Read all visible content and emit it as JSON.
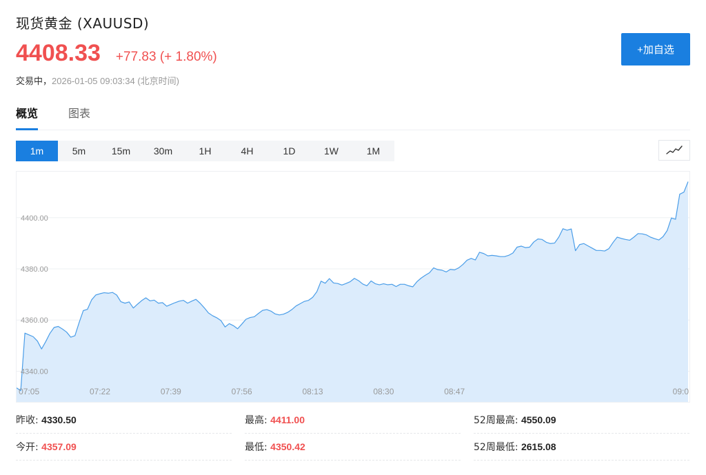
{
  "header": {
    "title": "现货黄金 (XAUUSD)",
    "price": "4408.33",
    "change": "+77.83 (+ 1.80%)",
    "status_label": "交易中，",
    "timestamp": "2026-01-05 09:03:34 (北京时间)",
    "add_button": "+加自选",
    "accent_color": "#1a7fe0",
    "up_color": "#f05050"
  },
  "tabs": [
    {
      "label": "概览",
      "active": true
    },
    {
      "label": "图表",
      "active": false
    }
  ],
  "periods": [
    {
      "label": "1m",
      "active": true
    },
    {
      "label": "5m"
    },
    {
      "label": "15m"
    },
    {
      "label": "30m"
    },
    {
      "label": "1H"
    },
    {
      "label": "4H"
    },
    {
      "label": "1D"
    },
    {
      "label": "1W"
    },
    {
      "label": "1M"
    }
  ],
  "chart_type_icon": "line-chart-icon",
  "chart_data": {
    "type": "area",
    "series": [
      {
        "values": [
          4333.5,
          4332.4,
          4354.9,
          4354.2,
          4353.5,
          4351.8,
          4348.7,
          4351.6,
          4354.8,
          4357.1,
          4357.5,
          4356.5,
          4355.3,
          4353.3,
          4353.9,
          4359,
          4363.7,
          4364.2,
          4367.9,
          4369.8,
          4370.3,
          4370.7,
          4370.5,
          4370.8,
          4369.8,
          4367.2,
          4366.6,
          4367.1,
          4364.7,
          4366.2,
          4367.6,
          4368.7,
          4367.5,
          4367.8,
          4366.6,
          4366.8,
          4365.4,
          4366.1,
          4366.8,
          4367.4,
          4367.7,
          4366.6,
          4367.4,
          4368.1,
          4366.6,
          4364.8,
          4362.8,
          4361.7,
          4360.9,
          4359.8,
          4357.3,
          4358.6,
          4357.8,
          4356.6,
          4358.4,
          4360.3,
          4361,
          4361.3,
          4362.6,
          4363.8,
          4364.1,
          4363.5,
          4362.4,
          4362,
          4362.3,
          4363,
          4364.1,
          4365.5,
          4366.4,
          4367.3,
          4367.7,
          4368.9,
          4371.1,
          4375.2,
          4374.4,
          4376.2,
          4374.5,
          4374.3,
          4373.7,
          4374.3,
          4375,
          4376.3,
          4375.4,
          4374.1,
          4373.4,
          4375.3,
          4374.2,
          4373.8,
          4374.2,
          4373.8,
          4374,
          4373.1,
          4374,
          4374,
          4373.4,
          4373,
          4375,
          4376.4,
          4377.5,
          4378.5,
          4380.4,
          4379.7,
          4379.5,
          4378.8,
          4379.8,
          4379.6,
          4380.4,
          4381.7,
          4383.4,
          4384.1,
          4383.5,
          4386.5,
          4386,
          4385.1,
          4385.3,
          4385.1,
          4384.8,
          4384.8,
          4385.3,
          4386.2,
          4388.5,
          4388.9,
          4388.3,
          4388.5,
          4390.5,
          4391.7,
          4391.5,
          4390.4,
          4389.9,
          4390.1,
          4392.4,
          4395.7,
          4395.1,
          4395.6,
          4387.1,
          4389.5,
          4389.9,
          4389,
          4388.1,
          4387.2,
          4387.2,
          4387,
          4387.9,
          4390.3,
          4392.4,
          4391.9,
          4391.5,
          4391.2,
          4392.4,
          4393.8,
          4393.7,
          4393.3,
          4392.4,
          4391.8,
          4391.3,
          4392.6,
          4395,
          4399.9,
          4399.4,
          4409.2,
          4410,
          4414.1
        ]
      }
    ],
    "x_tick_labels": [
      "07:05",
      "07:22",
      "07:39",
      "07:56",
      "08:13",
      "08:30",
      "08:47",
      "09:0"
    ],
    "x_tick_index": [
      3,
      20,
      37,
      54,
      71,
      88,
      105,
      122
    ],
    "y_ticks": [
      4340,
      4360,
      4380,
      4400
    ],
    "y_tick_labels": [
      "4340.00",
      "4360.00",
      "4380.00",
      "4400.00"
    ],
    "ylim": [
      4328,
      4418
    ],
    "grid": true,
    "line_color": "#4a9de8",
    "fill_color": "#dcecfc"
  },
  "stats": {
    "prev_close_label": "昨收:",
    "prev_close": "4330.50",
    "high_label": "最高:",
    "high": "4411.00",
    "high52_label": "52周最高:",
    "high52": "4550.09",
    "open_label": "今开:",
    "open": "4357.09",
    "low_label": "最低:",
    "low": "4350.42",
    "low52_label": "52周最低:",
    "low52": "2615.08"
  }
}
